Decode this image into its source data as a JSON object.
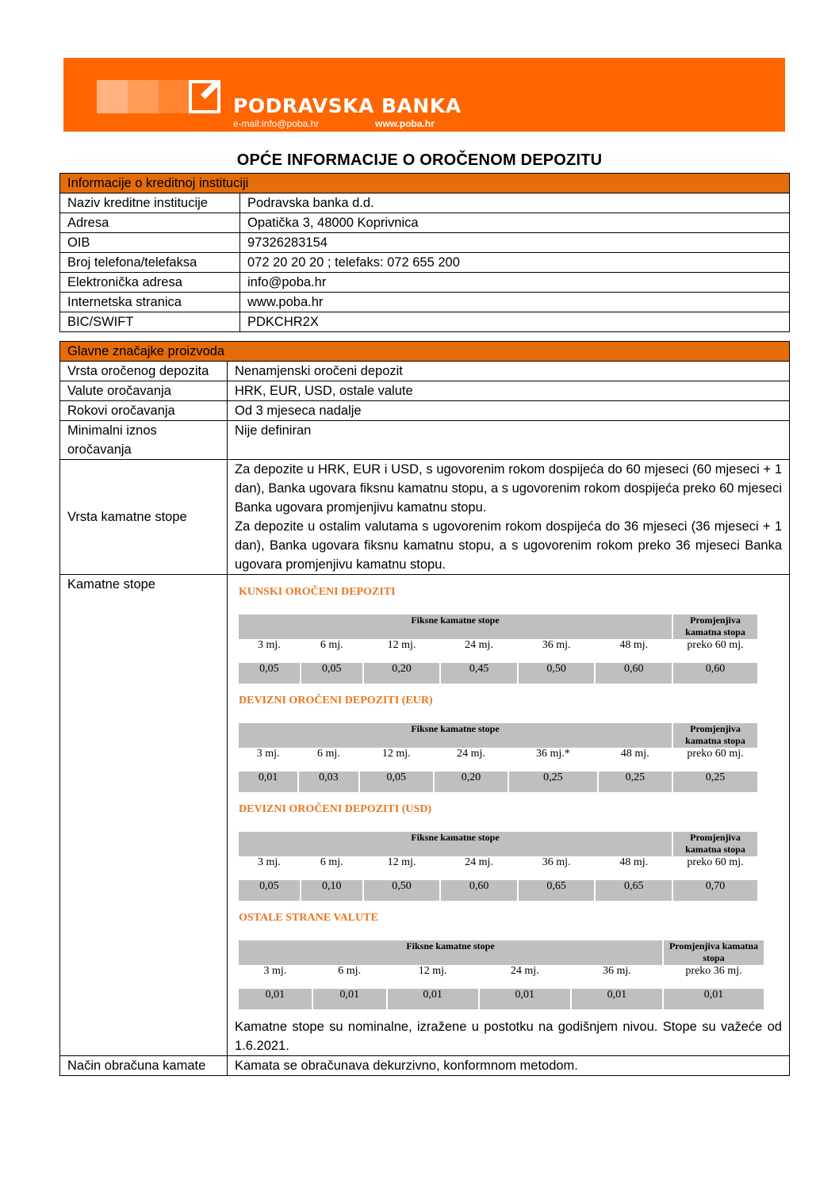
{
  "header": {
    "bank_name": "PODRAVSKA BANKA",
    "email": "e-mail:info@poba.hr",
    "web": "www.poba.hr",
    "brand_color": "#FF6600"
  },
  "title": "OPĆE INFORMACIJE O OROČENOM DEPOZITU",
  "institution": {
    "heading": "Informacije o kreditnoj instituciji",
    "rows": [
      [
        "Naziv kreditne institucije",
        "Podravska banka d.d."
      ],
      [
        "Adresa",
        "Opatička 3, 48000 Koprivnica"
      ],
      [
        "OIB",
        "97326283154"
      ],
      [
        "Broj telefona/telefaksa",
        "072 20 20 20 ; telefaks: 072 655 200"
      ],
      [
        "Elektronička adresa",
        "info@poba.hr"
      ],
      [
        "Internetska stranica",
        "www.poba.hr"
      ],
      [
        "BIC/SWIFT",
        "PDKCHR2X"
      ]
    ]
  },
  "product": {
    "heading": "Glavne značajke proizvoda",
    "rows": [
      [
        "Vrsta oročenog depozita",
        "Nenamjenski oročeni depozit"
      ],
      [
        "Valute oročavanja",
        "HRK, EUR, USD, ostale valute"
      ],
      [
        "Rokovi oročavanja",
        "Od 3 mjeseca nadalje"
      ],
      [
        "Minimalni iznos oročavanja",
        "Nije definiran"
      ]
    ],
    "rate_type_label": "Vrsta kamatne stope",
    "rate_type_text": [
      "Za depozite u HRK, EUR i USD, s ugovorenim rokom dospijeća do 60 mjeseci (60 mjeseci + 1 dan), Banka ugovara fiksnu kamatnu stopu, a s ugovorenim rokom dospijeća preko 60 mjeseci Banka ugovara promjenjivu kamatnu stopu.",
      "Za depozite u ostalim valutama s ugovorenim rokom dospijeća do 36 mjeseci (36 mjeseci + 1 dan), Banka ugovara fiksnu kamatnu stopu, a s ugovorenim rokom preko 36 mjeseci Banka ugovara promjenjivu kamatnu stopu."
    ],
    "rates_label": "Kamatne stope",
    "fixed_label": "Fiksne kamatne stope",
    "variable_label": "Promjenjiva kamatna stopa",
    "rate_tables": [
      {
        "title": "KUNSKI OROČENI DEPOZITI",
        "terms": [
          "3 mj.",
          "6 mj.",
          "12 mj.",
          "24 mj.",
          "36 mj.",
          "48 mj.",
          "preko 60 mj."
        ],
        "values": [
          "0,05",
          "0,05",
          "0,20",
          "0,45",
          "0,50",
          "0,60",
          "0,60"
        ]
      },
      {
        "title": "DEVIZNI OROČENI DEPOZITI (EUR)",
        "terms": [
          "3 mj.",
          "6 mj.",
          "12 mj.",
          "24 mj.",
          "36 mj.*",
          "48 mj.",
          "preko 60 mj."
        ],
        "values": [
          "0,01",
          "0,03",
          "0,05",
          "0,20",
          "0,25",
          "0,25",
          "0,25"
        ]
      },
      {
        "title": "DEVIZNI OROČENI DEPOZITI (USD)",
        "terms": [
          "3 mj.",
          "6 mj.",
          "12 mj.",
          "24 mj.",
          "36 mj.",
          "48 mj.",
          "preko 60 mj."
        ],
        "values": [
          "0,05",
          "0,10",
          "0,50",
          "0,60",
          "0,65",
          "0,65",
          "0,70"
        ]
      },
      {
        "title": "OSTALE STRANE VALUTE",
        "terms": [
          "3 mj.",
          "6 mj.",
          "12 mj.",
          "24 mj.",
          "36 mj.",
          "preko 36 mj."
        ],
        "values": [
          "0,01",
          "0,01",
          "0,01",
          "0,01",
          "0,01",
          "0,01"
        ]
      }
    ],
    "rates_note": "Kamatne stope su nominalne, izražene u postotku na godišnjem nivou. Stope su važeće od 1.6.2021.",
    "calc_label": "Način obračuna kamate",
    "calc_text": "Kamata se obračunava dekurzivno, konformnom metodom."
  },
  "heading_color": "#E46C0A"
}
